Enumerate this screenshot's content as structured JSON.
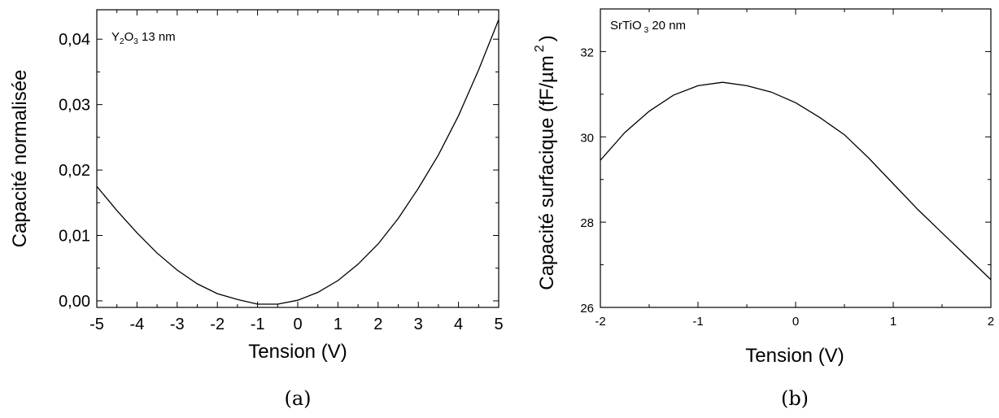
{
  "chart_data": [
    {
      "type": "line",
      "caption": "(a)",
      "annotation": {
        "base1": "Y",
        "sub1": "2",
        "base2": "O",
        "sub2": "3",
        "rest": " 13 nm"
      },
      "xlabel": "Tension (V)",
      "ylabel": "Capacité normalisée",
      "xlim": [
        -5,
        5
      ],
      "ylim": [
        -0.001,
        0.0445
      ],
      "xticks": [
        -5,
        -4,
        -3,
        -2,
        -1,
        0,
        1,
        2,
        3,
        4,
        5
      ],
      "xtick_labels": [
        "-5",
        "-4",
        "-3",
        "-2",
        "-1",
        "0",
        "1",
        "2",
        "3",
        "4",
        "5"
      ],
      "yticks": [
        0,
        0.01,
        0.02,
        0.03,
        0.04
      ],
      "ytick_labels": [
        "0,00",
        "0,01",
        "0,02",
        "0,03",
        "0,04"
      ],
      "series": [
        {
          "x": [
            -5,
            -4.5,
            -4,
            -3.5,
            -3,
            -2.5,
            -2,
            -1.5,
            -1,
            -0.5,
            0,
            0.5,
            1,
            1.5,
            2,
            2.5,
            3,
            3.5,
            4,
            4.5,
            5
          ],
          "y": [
            0.0175,
            0.0138,
            0.0104,
            0.0073,
            0.0047,
            0.0026,
            0.0011,
            0.0002,
            -0.0005,
            -0.0005,
            0.0001,
            0.0013,
            0.0031,
            0.0056,
            0.0087,
            0.0126,
            0.0172,
            0.0223,
            0.0283,
            0.0353,
            0.043
          ]
        }
      ]
    },
    {
      "type": "line",
      "caption": "(b)",
      "annotation": {
        "base1": "SrTiO",
        "sub1": "3",
        "rest": " 20 nm"
      },
      "xlabel": "Tension (V)",
      "ylabel": "Capacité surfacique (fF/µm",
      "ylabel_sup": "2",
      "ylabel_close": ")",
      "xlim": [
        -2,
        2
      ],
      "ylim": [
        26,
        33
      ],
      "xticks": [
        -2,
        -1,
        0,
        1,
        2
      ],
      "xtick_labels": [
        "-2",
        "-1",
        "0",
        "1",
        "2"
      ],
      "yticks": [
        26,
        28,
        30,
        32
      ],
      "ytick_labels": [
        "26",
        "28",
        "30",
        "32"
      ],
      "series": [
        {
          "x": [
            -2,
            -1.75,
            -1.5,
            -1.25,
            -1,
            -0.75,
            -0.5,
            -0.25,
            0,
            0.25,
            0.5,
            0.75,
            1,
            1.25,
            1.5,
            1.75,
            2
          ],
          "y": [
            29.45,
            30.1,
            30.6,
            30.98,
            31.2,
            31.28,
            31.2,
            31.05,
            30.8,
            30.45,
            30.05,
            29.5,
            28.9,
            28.3,
            27.75,
            27.2,
            26.65
          ]
        }
      ]
    }
  ]
}
